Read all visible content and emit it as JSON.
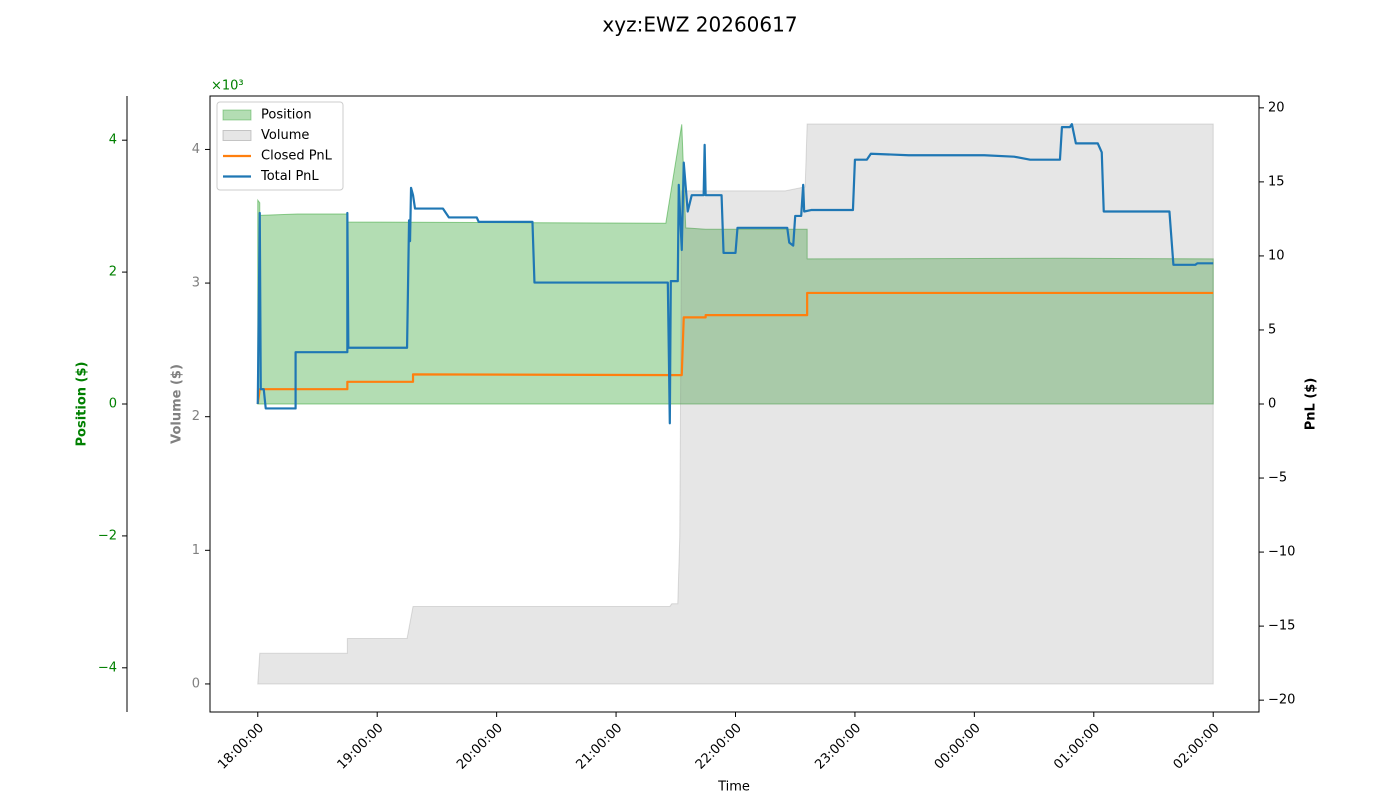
{
  "chart_data": {
    "type": "combo",
    "title": "xyz:EWZ 20260617",
    "xlabel": "Time",
    "ylabel": "Position ($)",
    "y2label": "Volume ($)",
    "y3label": "PnL ($)",
    "offset_text": "×10³",
    "xlim": [
      "17:36:00",
      "02:23:00"
    ],
    "xticks": [
      "18:00:00",
      "19:00:00",
      "20:00:00",
      "21:00:00",
      "22:00:00",
      "23:00:00",
      "00:00:00",
      "01:00:00",
      "02:00:00"
    ],
    "ylim": [
      -4.67,
      4.67
    ],
    "yticks": [
      {
        "value": -4,
        "label": "−4"
      },
      {
        "value": -2,
        "label": "−2"
      },
      0,
      2,
      4
    ],
    "y2lim": [
      -0.21,
      4.4
    ],
    "y2ticks": [
      0,
      1,
      2,
      3,
      4
    ],
    "y3lim": [
      -20.8,
      20.8
    ],
    "y3ticks": [
      {
        "value": -20,
        "label": "−20"
      },
      {
        "value": -15,
        "label": "−15"
      },
      {
        "value": -10,
        "label": "−10"
      },
      {
        "value": -5,
        "label": "−5"
      },
      0,
      5,
      10,
      15,
      20
    ],
    "legend": "upper left",
    "series": [
      {
        "name": "Position",
        "type": "area",
        "axis": "y",
        "color": "#2ca02c",
        "x": [
          "18:00:00",
          "18:01:00",
          "18:01:00",
          "18:20:00",
          "18:45:00",
          "18:45:00",
          "21:25:00",
          "21:33:00",
          "21:35:00",
          "21:45:00",
          "22:36:00",
          "22:36:00",
          "00:45:00",
          "02:00:00"
        ],
        "values": [
          3.09,
          3.05,
          2.86,
          2.88,
          2.88,
          2.76,
          2.74,
          4.24,
          2.67,
          2.65,
          2.65,
          2.2,
          2.21,
          2.2
        ]
      },
      {
        "name": "Volume",
        "type": "area",
        "axis": "y2",
        "color": "#808080",
        "x": [
          "18:00:00",
          "18:01:00",
          "18:45:00",
          "18:45:00",
          "19:15:00",
          "19:18:00",
          "21:27:00",
          "21:28:00",
          "21:31:00",
          "21:32:00",
          "21:33:00",
          "22:25:00",
          "22:35:00",
          "22:36:00",
          "02:00:00"
        ],
        "values": [
          0,
          0.23,
          0.23,
          0.34,
          0.34,
          0.58,
          0.58,
          0.6,
          0.6,
          1.1,
          3.69,
          3.69,
          3.72,
          4.19,
          4.19
        ]
      },
      {
        "name": "Closed PnL",
        "type": "line",
        "axis": "y3",
        "color": "#ff7f0e",
        "x": [
          "18:00:00",
          "18:01:00",
          "18:45:00",
          "18:45:00",
          "19:18:00",
          "19:18:00",
          "21:33:00",
          "21:34:00",
          "21:45:00",
          "21:45:00",
          "22:36:00",
          "22:36:00",
          "02:00:00"
        ],
        "values": [
          0,
          1.0,
          1.0,
          1.5,
          1.5,
          2.0,
          1.95,
          5.85,
          5.85,
          6.0,
          6.0,
          7.5,
          7.5
        ]
      },
      {
        "name": "Total PnL",
        "type": "line",
        "axis": "y3",
        "color": "#1f77b4",
        "x": [
          "18:00:00",
          "18:01:00",
          "18:01:30",
          "18:03:00",
          "18:04:00",
          "18:19:00",
          "18:19:00",
          "18:45:00",
          "18:45:00",
          "18:45:30",
          "19:15:00",
          "19:16:00",
          "19:16:30",
          "19:17:00",
          "19:18:00",
          "19:19:00",
          "19:33:00",
          "19:36:00",
          "19:50:00",
          "19:51:00",
          "20:18:00",
          "20:19:00",
          "21:26:00",
          "21:27:00",
          "21:27:30",
          "21:31:00",
          "21:31:30",
          "21:33:00",
          "21:34:00",
          "21:36:00",
          "21:38:00",
          "21:44:00",
          "21:44:30",
          "21:45:00",
          "21:53:00",
          "21:54:00",
          "22:00:00",
          "22:01:00",
          "22:26:00",
          "22:27:00",
          "22:29:00",
          "22:30:00",
          "22:33:00",
          "22:34:00",
          "22:34:30",
          "22:38:00",
          "22:59:00",
          "23:00:00",
          "23:06:00",
          "23:08:00",
          "23:27:00",
          "00:05:00",
          "00:20:00",
          "00:28:00",
          "00:43:00",
          "00:44:00",
          "00:48:00",
          "00:49:00",
          "00:51:00",
          "01:02:00",
          "01:04:00",
          "01:05:00",
          "01:38:00",
          "01:40:00",
          "01:51:00",
          "01:52:00",
          "02:00:00"
        ],
        "values": [
          0,
          12.9,
          1.0,
          1.0,
          -0.3,
          -0.3,
          3.5,
          3.5,
          12.9,
          3.8,
          3.8,
          12.4,
          11.0,
          14.6,
          14.1,
          13.2,
          13.2,
          12.6,
          12.6,
          12.3,
          12.3,
          8.2,
          8.2,
          -1.3,
          8.3,
          8.3,
          14.8,
          10.4,
          16.3,
          13.0,
          14.1,
          14.1,
          17.5,
          14.1,
          14.1,
          10.2,
          10.2,
          11.9,
          11.9,
          10.9,
          10.7,
          12.7,
          12.7,
          14.8,
          13.0,
          13.1,
          13.1,
          16.5,
          16.5,
          16.9,
          16.8,
          16.8,
          16.7,
          16.5,
          16.5,
          18.7,
          18.7,
          18.9,
          17.6,
          17.6,
          17.0,
          13.0,
          13.0,
          9.4,
          9.4,
          9.5,
          9.5
        ]
      }
    ]
  }
}
